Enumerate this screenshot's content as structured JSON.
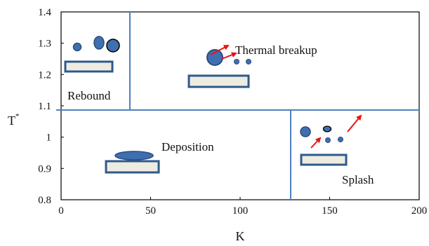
{
  "axes": {
    "x_label": "K",
    "y_label": "T",
    "y_label_superscript": "*",
    "x_range": [
      0,
      200
    ],
    "y_range": [
      0.8,
      1.4
    ],
    "x_ticks": [
      "0",
      "50",
      "100",
      "150",
      "200"
    ],
    "y_ticks": [
      "0.8",
      "0.9",
      "1",
      "1.1",
      "1.2",
      "1.3",
      "1.4"
    ]
  },
  "regions": {
    "rebound": "Rebound",
    "thermal_breakup": "Thermal breakup",
    "deposition": "Deposition",
    "splash": "Splash"
  },
  "boundaries": {
    "k_upper": 38,
    "k_lower": 128,
    "t_split": 1.088
  },
  "colors": {
    "boundary": "#4f81bd",
    "droplet_fill": "#3f6fb0",
    "droplet_stroke": "#2a4d80",
    "surface_fill": "#eeece1",
    "surface_stroke": "#2f5a8a",
    "arrow": "#ee1111"
  }
}
